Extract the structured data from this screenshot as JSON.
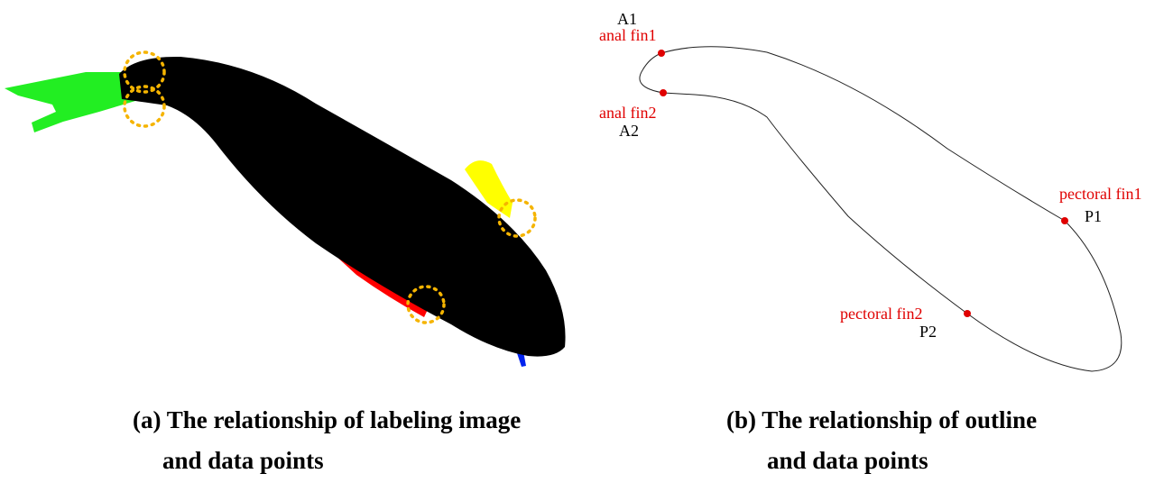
{
  "figure": {
    "panels": [
      {
        "caption_lines": [
          "(a) The relationship of labeling image",
          "and data points"
        ]
      },
      {
        "caption_lines": [
          "(b) The relationship of outline",
          "and data points"
        ],
        "points": [
          {
            "name": "anal fin1",
            "id": "A1"
          },
          {
            "name": "anal fin2",
            "id": "A2"
          },
          {
            "name": "pectoral fin1",
            "id": "P1"
          },
          {
            "name": "pectoral fin2",
            "id": "P2"
          }
        ]
      }
    ]
  }
}
